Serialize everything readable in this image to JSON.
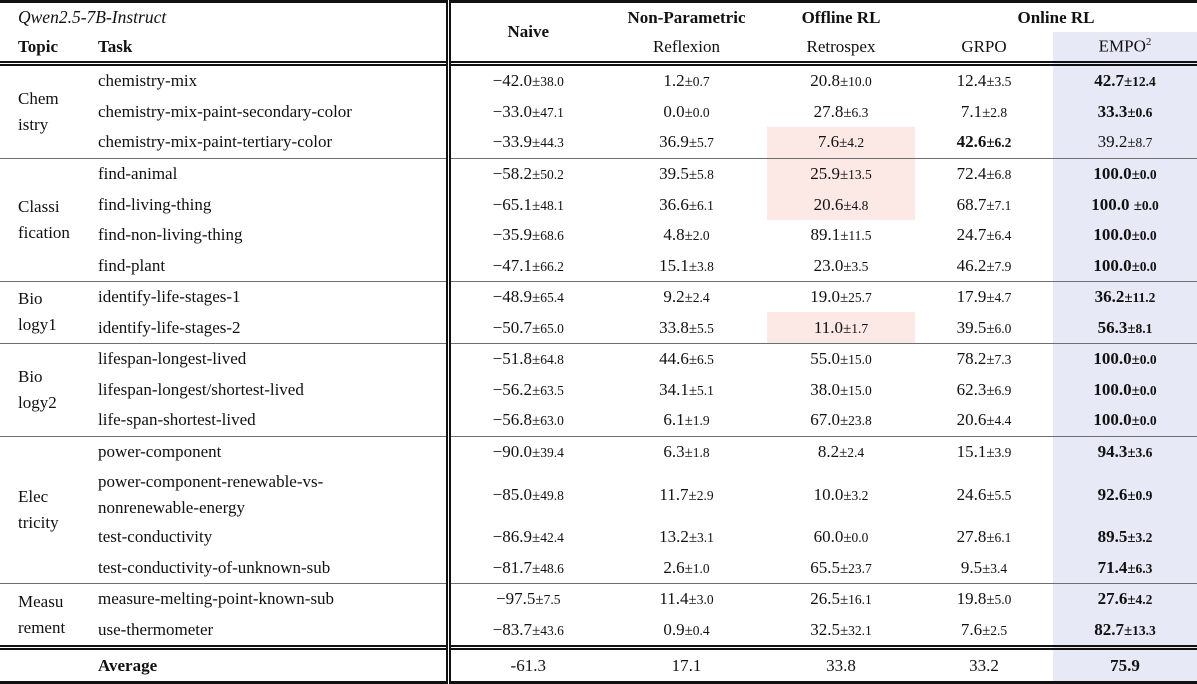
{
  "header": {
    "model": "Qwen2.5-7B-Instruct",
    "topic": "Topic",
    "task": "Task",
    "naive": "Naive",
    "groups": [
      {
        "label": "Non-Parametric"
      },
      {
        "label": "Offline RL"
      },
      {
        "label": "Online RL"
      }
    ],
    "methods": {
      "reflexion": "Reflexion",
      "retrospex": "Retrospex",
      "grpo": "GRPO",
      "empo": "EMPO",
      "empo_sup": "2"
    }
  },
  "colors": {
    "empo_column_bg": "#e8e9f7",
    "worst_cell_bg": "#fce8e5"
  },
  "sections": [
    {
      "id": "chemistry",
      "topic_lines": [
        "Chem",
        "istry"
      ],
      "rows": [
        {
          "task": [
            "chemistry-mix"
          ],
          "cells": {
            "naive": [
              "−42.0",
              "38.0"
            ],
            "reflexion": [
              "1.2",
              "0.7"
            ],
            "retrospex": [
              "20.8",
              "10.0"
            ],
            "grpo": [
              "12.4",
              "3.5"
            ],
            "empo": [
              "42.7",
              "12.4",
              "b"
            ]
          }
        },
        {
          "task": [
            "chemistry-mix-paint-secondary-color"
          ],
          "cells": {
            "naive": [
              "−33.0",
              "47.1"
            ],
            "reflexion": [
              "0.0",
              "0.0"
            ],
            "retrospex": [
              "27.8",
              "6.3"
            ],
            "grpo": [
              "7.1",
              "2.8"
            ],
            "empo": [
              "33.3",
              "0.6",
              "b"
            ]
          }
        },
        {
          "task": [
            "chemistry-mix-paint-tertiary-color"
          ],
          "cells": {
            "naive": [
              "−33.9",
              "44.3"
            ],
            "reflexion": [
              "36.9",
              "5.7"
            ],
            "retrospex": [
              "7.6",
              "4.2",
              "p"
            ],
            "grpo": [
              "42.6",
              "6.2",
              "b"
            ],
            "empo": [
              "39.2",
              "8.7"
            ]
          }
        }
      ]
    },
    {
      "id": "classification",
      "topic_lines": [
        "Classi",
        "fication"
      ],
      "rows": [
        {
          "task": [
            "find-animal"
          ],
          "cells": {
            "naive": [
              "−58.2",
              "50.2"
            ],
            "reflexion": [
              "39.5",
              "5.8"
            ],
            "retrospex": [
              "25.9",
              "13.5",
              "p"
            ],
            "grpo": [
              "72.4",
              "6.8"
            ],
            "empo": [
              "100.0",
              "0.0",
              "b"
            ]
          }
        },
        {
          "task": [
            "find-living-thing"
          ],
          "cells": {
            "naive": [
              "−65.1",
              "48.1"
            ],
            "reflexion": [
              "36.6",
              "6.1"
            ],
            "retrospex": [
              "20.6",
              "4.8",
              "p"
            ],
            "grpo": [
              "68.7",
              "7.1"
            ],
            "empo": [
              "100.0 ",
              "0.0",
              "b"
            ]
          }
        },
        {
          "task": [
            "find-non-living-thing"
          ],
          "cells": {
            "naive": [
              "−35.9",
              "68.6"
            ],
            "reflexion": [
              "4.8",
              "2.0"
            ],
            "retrospex": [
              "89.1",
              "11.5"
            ],
            "grpo": [
              "24.7",
              "6.4"
            ],
            "empo": [
              "100.0",
              "0.0",
              "b"
            ]
          }
        },
        {
          "task": [
            "find-plant"
          ],
          "cells": {
            "naive": [
              "−47.1",
              "66.2"
            ],
            "reflexion": [
              "15.1",
              "3.8"
            ],
            "retrospex": [
              "23.0",
              "3.5"
            ],
            "grpo": [
              "46.2",
              "7.9"
            ],
            "empo": [
              "100.0",
              "0.0",
              "b"
            ]
          }
        }
      ]
    },
    {
      "id": "biology1",
      "topic_lines": [
        "Bio",
        "logy1"
      ],
      "rows": [
        {
          "task": [
            "identify-life-stages-1"
          ],
          "cells": {
            "naive": [
              "−48.9",
              "65.4"
            ],
            "reflexion": [
              "9.2",
              "2.4"
            ],
            "retrospex": [
              "19.0",
              "25.7"
            ],
            "grpo": [
              "17.9",
              "4.7"
            ],
            "empo": [
              "36.2",
              "11.2",
              "b"
            ]
          }
        },
        {
          "task": [
            "identify-life-stages-2"
          ],
          "cells": {
            "naive": [
              "−50.7",
              "65.0"
            ],
            "reflexion": [
              "33.8",
              "5.5"
            ],
            "retrospex": [
              "11.0",
              "1.7",
              "p"
            ],
            "grpo": [
              "39.5",
              "6.0"
            ],
            "empo": [
              "56.3",
              "8.1",
              "b"
            ]
          }
        }
      ]
    },
    {
      "id": "biology2",
      "topic_lines": [
        "Bio",
        "logy2"
      ],
      "rows": [
        {
          "task": [
            "lifespan-longest-lived"
          ],
          "cells": {
            "naive": [
              "−51.8",
              "64.8"
            ],
            "reflexion": [
              "44.6",
              "6.5"
            ],
            "retrospex": [
              "55.0",
              "15.0"
            ],
            "grpo": [
              "78.2",
              "7.3"
            ],
            "empo": [
              "100.0",
              "0.0",
              "b"
            ]
          }
        },
        {
          "task": [
            "lifespan-longest/shortest-lived"
          ],
          "cells": {
            "naive": [
              "−56.2",
              "63.5"
            ],
            "reflexion": [
              "34.1",
              "5.1"
            ],
            "retrospex": [
              "38.0",
              "15.0"
            ],
            "grpo": [
              "62.3",
              "6.9"
            ],
            "empo": [
              "100.0",
              "0.0",
              "b"
            ]
          }
        },
        {
          "task": [
            "life-span-shortest-lived"
          ],
          "cells": {
            "naive": [
              "−56.8",
              "63.0"
            ],
            "reflexion": [
              "6.1",
              "1.9"
            ],
            "retrospex": [
              "67.0",
              "23.8"
            ],
            "grpo": [
              "20.6",
              "4.4"
            ],
            "empo": [
              "100.0",
              "0.0",
              "b"
            ]
          }
        }
      ]
    },
    {
      "id": "electricity",
      "topic_lines": [
        "Elec",
        "tricity"
      ],
      "rows": [
        {
          "task": [
            "power-component"
          ],
          "cells": {
            "naive": [
              "−90.0",
              "39.4"
            ],
            "reflexion": [
              "6.3",
              "1.8"
            ],
            "retrospex": [
              "8.2",
              "2.4"
            ],
            "grpo": [
              "15.1",
              "3.9"
            ],
            "empo": [
              "94.3",
              "3.6",
              "b"
            ]
          }
        },
        {
          "task": [
            "power-component-renewable-vs-",
            "nonrenewable-energy"
          ],
          "cells": {
            "naive": [
              "−85.0",
              "49.8"
            ],
            "reflexion": [
              "11.7",
              "2.9"
            ],
            "retrospex": [
              "10.0",
              "3.2"
            ],
            "grpo": [
              "24.6",
              "5.5"
            ],
            "empo": [
              "92.6",
              "0.9",
              "b"
            ]
          }
        },
        {
          "task": [
            "test-conductivity"
          ],
          "cells": {
            "naive": [
              "−86.9",
              "42.4"
            ],
            "reflexion": [
              "13.2",
              "3.1"
            ],
            "retrospex": [
              "60.0",
              "0.0"
            ],
            "grpo": [
              "27.8",
              "6.1"
            ],
            "empo": [
              "89.5",
              "3.2",
              "b"
            ]
          }
        },
        {
          "task": [
            "test-conductivity-of-unknown-sub"
          ],
          "cells": {
            "naive": [
              "−81.7",
              "48.6"
            ],
            "reflexion": [
              "2.6",
              "1.0"
            ],
            "retrospex": [
              "65.5",
              "23.7"
            ],
            "grpo": [
              "9.5",
              "3.4"
            ],
            "empo": [
              "71.4",
              "6.3",
              "b"
            ]
          }
        }
      ]
    },
    {
      "id": "measurement",
      "topic_lines": [
        "Measu",
        "rement"
      ],
      "rows": [
        {
          "task": [
            "measure-melting-point-known-sub"
          ],
          "cells": {
            "naive": [
              "−97.5",
              "7.5"
            ],
            "reflexion": [
              "11.4",
              "3.0"
            ],
            "retrospex": [
              "26.5",
              "16.1"
            ],
            "grpo": [
              "19.8",
              "5.0"
            ],
            "empo": [
              "27.6",
              "4.2",
              "b"
            ]
          }
        },
        {
          "task": [
            "use-thermometer"
          ],
          "cells": {
            "naive": [
              "−83.7",
              "43.6"
            ],
            "reflexion": [
              "0.9",
              "0.4"
            ],
            "retrospex": [
              "32.5",
              "32.1"
            ],
            "grpo": [
              "7.6",
              "2.5"
            ],
            "empo": [
              "82.7",
              "13.3",
              "b"
            ]
          }
        }
      ]
    }
  ],
  "average": {
    "label": "Average",
    "values": {
      "naive": "-61.3",
      "reflexion": "17.1",
      "retrospex": "33.8",
      "grpo": "33.2",
      "empo": "75.9"
    }
  }
}
